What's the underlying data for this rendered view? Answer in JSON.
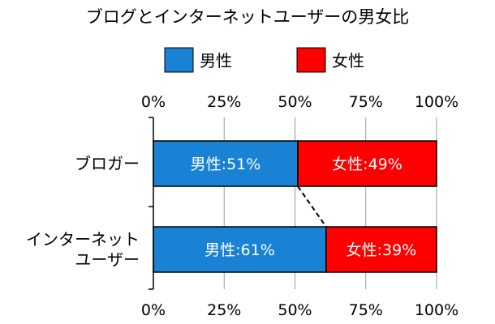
{
  "chart_data": {
    "type": "bar",
    "orientation": "horizontal",
    "stacked": true,
    "normalized": true,
    "title": "ブログとインターネットユーザーの男女比",
    "categories": [
      "ブロガー",
      "インターネットユーザー"
    ],
    "category_lines": [
      [
        "ブロガー"
      ],
      [
        "インターネット",
        "ユーザー"
      ]
    ],
    "series": [
      {
        "name": "男性",
        "values": [
          51,
          61
        ],
        "color": "#1a82d4",
        "labels": [
          "男性:51%",
          "男性:61%"
        ]
      },
      {
        "name": "女性",
        "values": [
          49,
          39
        ],
        "color": "#ff0000",
        "labels": [
          "女性:49%",
          "女性:39%"
        ]
      }
    ],
    "xlim": [
      0,
      100
    ],
    "ticks": [
      0,
      25,
      50,
      75,
      100
    ],
    "tick_labels": [
      "0%",
      "25%",
      "50%",
      "75%",
      "100%"
    ],
    "tick_label_positions": [
      "top",
      "bottom"
    ],
    "grid": true,
    "legend": "top",
    "connector": "dashed line between male segment ends"
  }
}
